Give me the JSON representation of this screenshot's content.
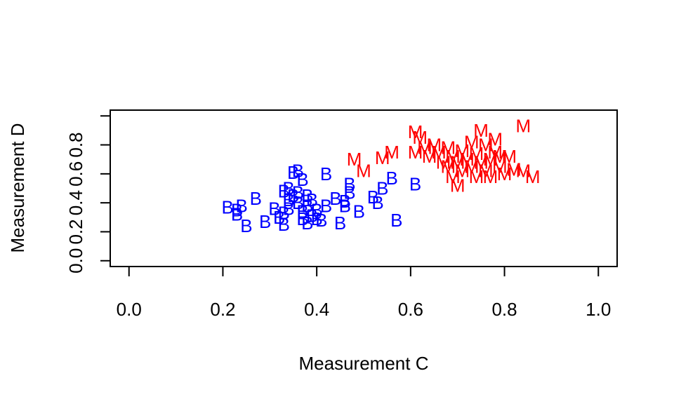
{
  "chart_data": {
    "type": "scatter",
    "title": "",
    "xlabel": "Measurement C",
    "ylabel": "Measurement D",
    "xlim": [
      -0.04,
      1.04
    ],
    "ylim": [
      -0.04,
      1.04
    ],
    "xticks": [
      0.0,
      0.2,
      0.4,
      0.6,
      0.8,
      1.0
    ],
    "xtick_labels": [
      "0.0",
      "0.2",
      "0.4",
      "0.6",
      "0.8",
      "1.0"
    ],
    "yticks": [
      0.0,
      0.2,
      0.4,
      0.6,
      0.8,
      1.0
    ],
    "ytick_labels": [
      "0.0",
      "0.2",
      "0.4",
      "0.6",
      "0.8",
      ""
    ],
    "grid": false,
    "legend": "none",
    "series": [
      {
        "marker": "B",
        "color": "#0000ff",
        "points": [
          [
            0.21,
            0.37
          ],
          [
            0.23,
            0.35
          ],
          [
            0.24,
            0.38
          ],
          [
            0.23,
            0.32
          ],
          [
            0.25,
            0.24
          ],
          [
            0.27,
            0.43
          ],
          [
            0.29,
            0.27
          ],
          [
            0.31,
            0.36
          ],
          [
            0.32,
            0.3
          ],
          [
            0.33,
            0.33
          ],
          [
            0.33,
            0.48
          ],
          [
            0.34,
            0.5
          ],
          [
            0.34,
            0.42
          ],
          [
            0.33,
            0.25
          ],
          [
            0.34,
            0.36
          ],
          [
            0.35,
            0.45
          ],
          [
            0.35,
            0.61
          ],
          [
            0.36,
            0.62
          ],
          [
            0.36,
            0.47
          ],
          [
            0.37,
            0.56
          ],
          [
            0.36,
            0.4
          ],
          [
            0.37,
            0.29
          ],
          [
            0.37,
            0.34
          ],
          [
            0.38,
            0.45
          ],
          [
            0.38,
            0.38
          ],
          [
            0.38,
            0.26
          ],
          [
            0.39,
            0.31
          ],
          [
            0.39,
            0.42
          ],
          [
            0.4,
            0.35
          ],
          [
            0.4,
            0.29
          ],
          [
            0.41,
            0.28
          ],
          [
            0.42,
            0.38
          ],
          [
            0.42,
            0.6
          ],
          [
            0.44,
            0.43
          ],
          [
            0.45,
            0.26
          ],
          [
            0.46,
            0.38
          ],
          [
            0.46,
            0.41
          ],
          [
            0.47,
            0.47
          ],
          [
            0.47,
            0.53
          ],
          [
            0.49,
            0.34
          ],
          [
            0.52,
            0.44
          ],
          [
            0.53,
            0.4
          ],
          [
            0.54,
            0.5
          ],
          [
            0.56,
            0.57
          ],
          [
            0.57,
            0.28
          ],
          [
            0.61,
            0.53
          ]
        ]
      },
      {
        "marker": "M",
        "color": "#ff0000",
        "points": [
          [
            0.48,
            0.7
          ],
          [
            0.5,
            0.62
          ],
          [
            0.54,
            0.71
          ],
          [
            0.56,
            0.75
          ],
          [
            0.61,
            0.89
          ],
          [
            0.61,
            0.75
          ],
          [
            0.62,
            0.85
          ],
          [
            0.63,
            0.78
          ],
          [
            0.64,
            0.72
          ],
          [
            0.65,
            0.8
          ],
          [
            0.66,
            0.75
          ],
          [
            0.67,
            0.68
          ],
          [
            0.68,
            0.65
          ],
          [
            0.68,
            0.78
          ],
          [
            0.69,
            0.58
          ],
          [
            0.69,
            0.72
          ],
          [
            0.7,
            0.52
          ],
          [
            0.7,
            0.68
          ],
          [
            0.71,
            0.62
          ],
          [
            0.71,
            0.76
          ],
          [
            0.72,
            0.7
          ],
          [
            0.73,
            0.65
          ],
          [
            0.73,
            0.82
          ],
          [
            0.74,
            0.58
          ],
          [
            0.74,
            0.74
          ],
          [
            0.75,
            0.9
          ],
          [
            0.75,
            0.68
          ],
          [
            0.76,
            0.62
          ],
          [
            0.76,
            0.8
          ],
          [
            0.77,
            0.7
          ],
          [
            0.77,
            0.58
          ],
          [
            0.78,
            0.75
          ],
          [
            0.78,
            0.84
          ],
          [
            0.79,
            0.65
          ],
          [
            0.79,
            0.72
          ],
          [
            0.8,
            0.6
          ],
          [
            0.81,
            0.72
          ],
          [
            0.82,
            0.63
          ],
          [
            0.84,
            0.62
          ],
          [
            0.84,
            0.93
          ],
          [
            0.86,
            0.58
          ]
        ]
      }
    ]
  }
}
